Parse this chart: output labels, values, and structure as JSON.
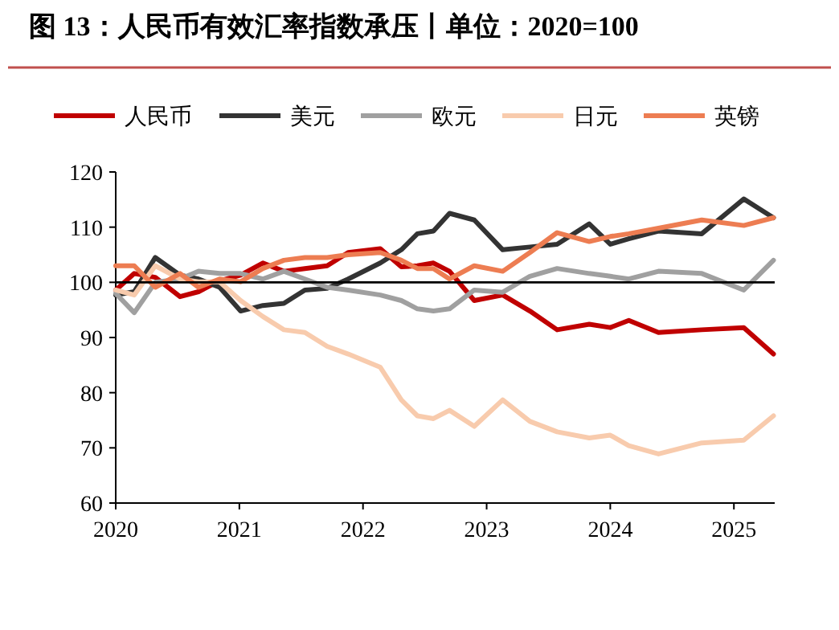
{
  "chart_data": {
    "type": "line",
    "title": "图 13：人民币有效汇率指数承压丨单位：2020=100",
    "x": [
      2020.0,
      2020.15,
      2020.32,
      2020.52,
      2020.67,
      2020.84,
      2021.01,
      2021.19,
      2021.36,
      2021.53,
      2021.71,
      2021.88,
      2022.14,
      2022.31,
      2022.44,
      2022.57,
      2022.7,
      2022.9,
      2023.13,
      2023.35,
      2023.57,
      2023.83,
      2024.0,
      2024.15,
      2024.39,
      2024.74,
      2025.08,
      2025.32
    ],
    "series": [
      {
        "name": "人民币",
        "color": "#c00000",
        "values": [
          98.6,
          101.6,
          100.9,
          97.4,
          98.3,
          100.3,
          101.3,
          103.5,
          102,
          102.5,
          103,
          105.4,
          106.1,
          102.8,
          103,
          103.5,
          102,
          96.7,
          97.7,
          94.8,
          91.4,
          92.4,
          91.8,
          93.1,
          90.9,
          91.4,
          91.8,
          87
        ]
      },
      {
        "name": "美元",
        "color": "#333333",
        "values": [
          97.7,
          98.3,
          104.5,
          101.3,
          100.6,
          99.1,
          94.8,
          95.8,
          96.2,
          98.6,
          98.9,
          100.6,
          103.5,
          105.9,
          108.8,
          109.3,
          112.5,
          111.3,
          105.9,
          106.4,
          106.9,
          110.6,
          106.9,
          107.9,
          109.3,
          108.8,
          115.1,
          111.7
        ]
      },
      {
        "name": "欧元",
        "color": "#a0a0a0",
        "values": [
          98,
          94.5,
          100,
          100.6,
          102,
          101.6,
          101.6,
          100.6,
          102,
          100.6,
          99.1,
          98.6,
          97.7,
          96.7,
          95.2,
          94.8,
          95.2,
          98.6,
          98.2,
          101.1,
          102.5,
          101.6,
          101.1,
          100.6,
          102,
          101.6,
          98.6,
          104
        ]
      },
      {
        "name": "日元",
        "color": "#f8cbad",
        "values": [
          98.6,
          97.7,
          103,
          100.6,
          100.1,
          100.1,
          96.7,
          93.8,
          91.4,
          90.9,
          88.4,
          87,
          84.6,
          78.7,
          75.8,
          75.3,
          76.8,
          73.9,
          78.7,
          74.8,
          72.9,
          71.8,
          72.3,
          70.4,
          68.9,
          70.9,
          71.4,
          75.8
        ]
      },
      {
        "name": "英镑",
        "color": "#ed7d52",
        "values": [
          103,
          103,
          99.1,
          101.6,
          99.1,
          100.6,
          100.1,
          102.5,
          104,
          104.5,
          104.5,
          105,
          105.4,
          104,
          102.5,
          102.5,
          100.6,
          103,
          102,
          105.4,
          109,
          107.4,
          108.3,
          108.8,
          109.8,
          111.3,
          110.3,
          111.7
        ]
      }
    ],
    "xlim": [
      2020,
      2025.33
    ],
    "xticks": [
      2020,
      2021,
      2022,
      2023,
      2024,
      2025
    ],
    "ylim": [
      60,
      120
    ],
    "yticks": [
      60,
      70,
      80,
      90,
      100,
      110,
      120
    ],
    "ref_lines": [
      {
        "axis": "y",
        "value": 100,
        "color": "#000000"
      }
    ],
    "legend": "top",
    "line_style": "solid",
    "marker": "none"
  }
}
